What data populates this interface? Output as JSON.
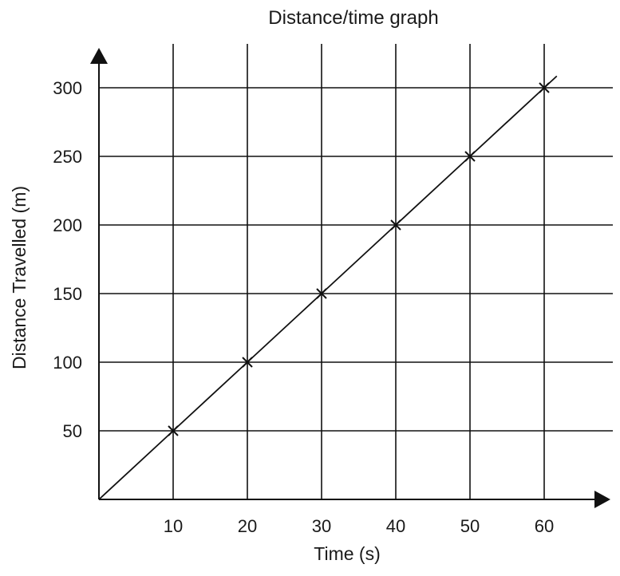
{
  "chart_data": {
    "type": "line",
    "title": "Distance/time graph",
    "xlabel": "Time (s)",
    "ylabel": "Distance Travelled (m)",
    "x_ticks": [
      10,
      20,
      30,
      40,
      50,
      60
    ],
    "y_ticks": [
      50,
      100,
      150,
      200,
      250,
      300
    ],
    "xlim": [
      0,
      66
    ],
    "ylim": [
      0,
      330
    ],
    "grid": true,
    "series": [
      {
        "x": [
          0,
          10,
          20,
          30,
          40,
          50,
          60
        ],
        "y": [
          0,
          50,
          100,
          150,
          200,
          250,
          300
        ],
        "marker": "x",
        "line": true
      }
    ],
    "colors": {
      "line": "#111111",
      "grid": "#111111"
    }
  }
}
